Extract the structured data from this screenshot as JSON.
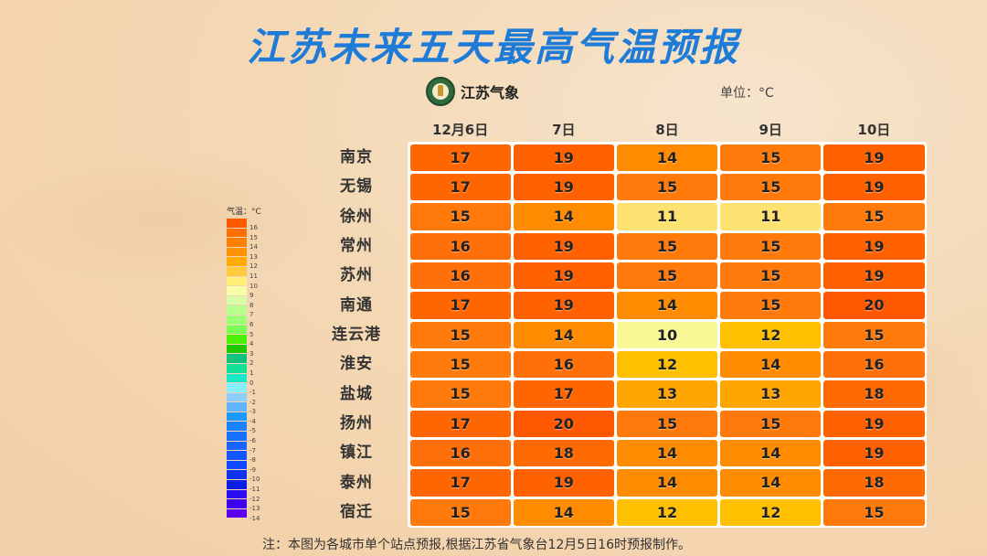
{
  "title": "江苏未来五天最高气温预报",
  "logo": {
    "icon": "jiangsu-meteorology-emblem",
    "text": "江苏气象"
  },
  "unit_label": "单位：°C",
  "legend": {
    "title": "气温：°C",
    "labels": [
      "16",
      "15",
      "14",
      "13",
      "12",
      "11",
      "10",
      "9",
      "8",
      "7",
      "6",
      "5",
      "4",
      "3",
      "2",
      "1",
      "0",
      "-1",
      "-2",
      "-3",
      "-4",
      "-5",
      "-6",
      "-7",
      "-8",
      "-9",
      "-10",
      "-11",
      "-12",
      "-13",
      "-14"
    ],
    "colors": [
      "#ff5a00",
      "#ff6f00",
      "#ff7f00",
      "#ff9200",
      "#ffab00",
      "#ffc940",
      "#fff07a",
      "#f7ffa8",
      "#d8ffa8",
      "#b8ff90",
      "#9cff78",
      "#78ff50",
      "#4cf000",
      "#1ec800",
      "#12c080",
      "#14e09a",
      "#18e8c8",
      "#86f0ff",
      "#8ccfff",
      "#62b4ff",
      "#1c9aff",
      "#1a82ff",
      "#1870ff",
      "#1864ff",
      "#1456ff",
      "#1048ff",
      "#0c34f0",
      "#0a1ee8",
      "#2a0cf0",
      "#3e00f0",
      "#5a00ee"
    ]
  },
  "table": {
    "columns": [
      "12月6日",
      "7日",
      "8日",
      "9日",
      "10日"
    ],
    "rows": [
      {
        "city": "南京",
        "values": [
          "17",
          "19",
          "14",
          "15",
          "19"
        ]
      },
      {
        "city": "无锡",
        "values": [
          "17",
          "19",
          "15",
          "15",
          "19"
        ]
      },
      {
        "city": "徐州",
        "values": [
          "15",
          "14",
          "11",
          "11",
          "15"
        ]
      },
      {
        "city": "常州",
        "values": [
          "16",
          "19",
          "15",
          "15",
          "19"
        ]
      },
      {
        "city": "苏州",
        "values": [
          "16",
          "19",
          "15",
          "15",
          "19"
        ]
      },
      {
        "city": "南通",
        "values": [
          "17",
          "19",
          "14",
          "15",
          "20"
        ]
      },
      {
        "city": "连云港",
        "values": [
          "15",
          "14",
          "10",
          "12",
          "15"
        ]
      },
      {
        "city": "淮安",
        "values": [
          "15",
          "16",
          "12",
          "14",
          "16"
        ]
      },
      {
        "city": "盐城",
        "values": [
          "15",
          "17",
          "13",
          "13",
          "18"
        ]
      },
      {
        "city": "扬州",
        "values": [
          "17",
          "20",
          "15",
          "15",
          "19"
        ]
      },
      {
        "city": "镇江",
        "values": [
          "16",
          "18",
          "14",
          "14",
          "19"
        ]
      },
      {
        "city": "泰州",
        "values": [
          "17",
          "19",
          "14",
          "14",
          "18"
        ]
      },
      {
        "city": "宿迁",
        "values": [
          "15",
          "14",
          "12",
          "12",
          "15"
        ]
      }
    ]
  },
  "value_colors": {
    "10": "#f8f896",
    "11": "#fde272",
    "12": "#ffc000",
    "13": "#ffa500",
    "14": "#ff8c00",
    "15": "#ff7a0a",
    "16": "#ff700a",
    "17": "#ff6600",
    "18": "#ff6a00",
    "19": "#ff6000",
    "20": "#ff5800"
  },
  "footnote": "注：本图为各城市单个站点预报,根据江苏省气象台12月5日16时预报制作。",
  "chart_data": {
    "type": "heatmap",
    "title": "江苏未来五天最高气温预报",
    "unit": "°C",
    "x": [
      "12月6日",
      "7日",
      "8日",
      "9日",
      "10日"
    ],
    "y": [
      "南京",
      "无锡",
      "徐州",
      "常州",
      "苏州",
      "南通",
      "连云港",
      "淮安",
      "盐城",
      "扬州",
      "镇江",
      "泰州",
      "宿迁"
    ],
    "values": [
      [
        17,
        19,
        14,
        15,
        19
      ],
      [
        17,
        19,
        15,
        15,
        19
      ],
      [
        15,
        14,
        11,
        11,
        15
      ],
      [
        16,
        19,
        15,
        15,
        19
      ],
      [
        16,
        19,
        15,
        15,
        19
      ],
      [
        17,
        19,
        14,
        15,
        20
      ],
      [
        15,
        14,
        10,
        12,
        15
      ],
      [
        15,
        16,
        12,
        14,
        16
      ],
      [
        15,
        17,
        13,
        13,
        18
      ],
      [
        17,
        20,
        15,
        15,
        19
      ],
      [
        16,
        18,
        14,
        14,
        19
      ],
      [
        17,
        19,
        14,
        14,
        18
      ],
      [
        15,
        14,
        12,
        12,
        15
      ]
    ],
    "legend_title": "气温：°C",
    "legend_range": [
      -14,
      16
    ],
    "legend_position": "left",
    "footnote": "注：本图为各城市单个站点预报,根据江苏省气象台12月5日16时预报制作。"
  }
}
